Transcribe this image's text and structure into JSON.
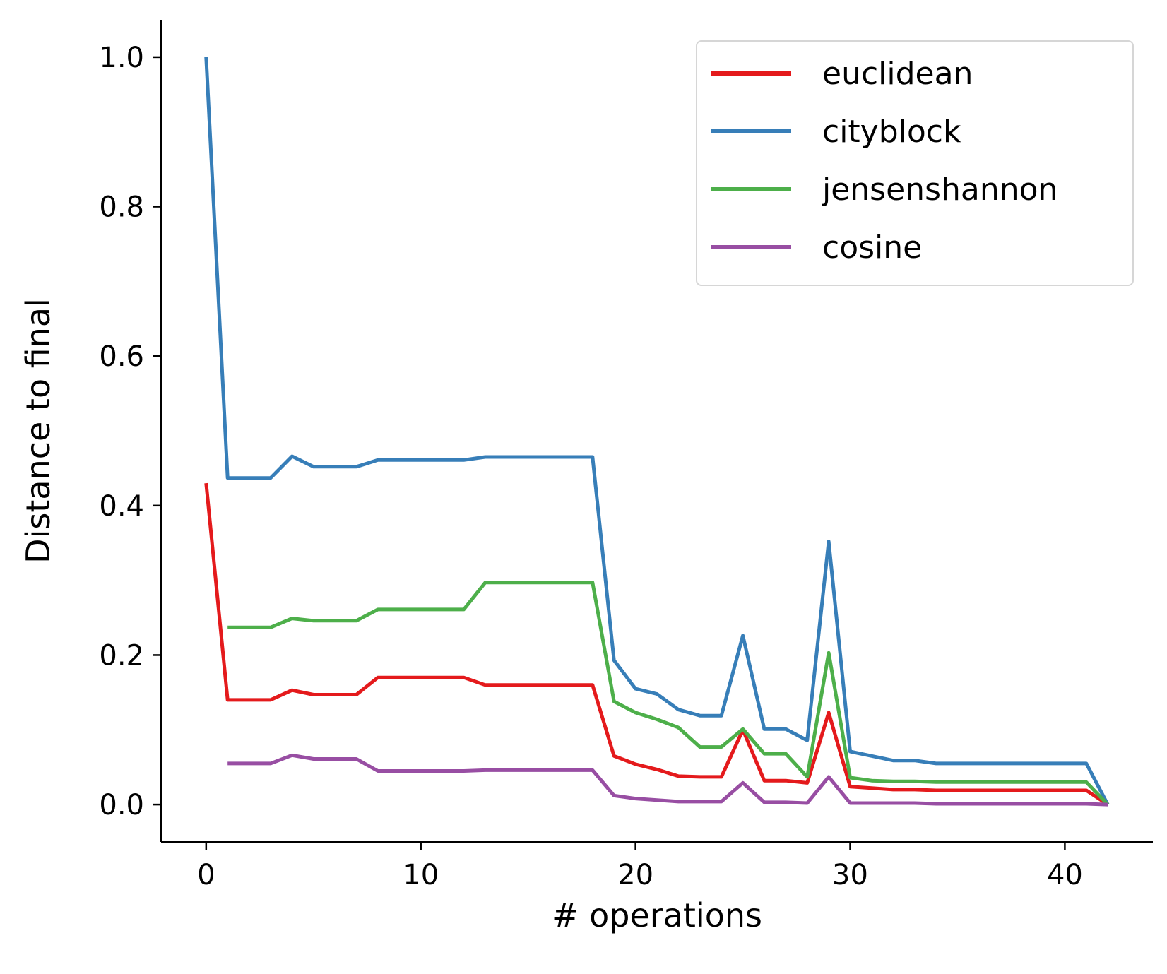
{
  "chart_data": {
    "type": "line",
    "title": "",
    "xlabel": "# operations",
    "ylabel": "Distance to final",
    "xlim": [
      -2.1,
      44.1
    ],
    "ylim": [
      -0.05,
      1.05
    ],
    "xticks": [
      0,
      10,
      20,
      30,
      40
    ],
    "xtick_labels": [
      "0",
      "10",
      "20",
      "30",
      "40"
    ],
    "yticks": [
      0.0,
      0.2,
      0.4,
      0.6,
      0.8,
      1.0
    ],
    "ytick_labels": [
      "0.0",
      "0.2",
      "0.4",
      "0.6",
      "0.8",
      "1.0"
    ],
    "grid": false,
    "legend_position": "top-right",
    "series": [
      {
        "name": "euclidean",
        "color": "#e41a1c",
        "x": [
          0,
          1,
          2,
          3,
          4,
          5,
          6,
          7,
          8,
          9,
          10,
          11,
          12,
          13,
          14,
          15,
          16,
          17,
          18,
          19,
          20,
          21,
          22,
          23,
          24,
          25,
          26,
          27,
          28,
          29,
          30,
          31,
          32,
          33,
          34,
          35,
          36,
          37,
          38,
          39,
          40,
          41,
          42
        ],
        "y": [
          0.43,
          0.14,
          0.14,
          0.14,
          0.153,
          0.147,
          0.147,
          0.147,
          0.17,
          0.17,
          0.17,
          0.17,
          0.17,
          0.16,
          0.16,
          0.16,
          0.16,
          0.16,
          0.16,
          0.065,
          0.054,
          0.047,
          0.038,
          0.037,
          0.037,
          0.1,
          0.032,
          0.032,
          0.029,
          0.123,
          0.024,
          0.022,
          0.02,
          0.02,
          0.019,
          0.019,
          0.019,
          0.019,
          0.019,
          0.019,
          0.019,
          0.019,
          0.0
        ]
      },
      {
        "name": "cityblock",
        "color": "#377eb8",
        "x": [
          0,
          1,
          2,
          3,
          4,
          5,
          6,
          7,
          8,
          9,
          10,
          11,
          12,
          13,
          14,
          15,
          16,
          17,
          18,
          19,
          20,
          21,
          22,
          23,
          24,
          25,
          26,
          27,
          28,
          29,
          30,
          31,
          32,
          33,
          34,
          35,
          36,
          37,
          38,
          39,
          40,
          41,
          42
        ],
        "y": [
          1.0,
          0.437,
          0.437,
          0.437,
          0.466,
          0.452,
          0.452,
          0.452,
          0.461,
          0.461,
          0.461,
          0.461,
          0.461,
          0.465,
          0.465,
          0.465,
          0.465,
          0.465,
          0.465,
          0.193,
          0.155,
          0.148,
          0.127,
          0.119,
          0.119,
          0.226,
          0.101,
          0.101,
          0.086,
          0.352,
          0.071,
          0.065,
          0.059,
          0.059,
          0.055,
          0.055,
          0.055,
          0.055,
          0.055,
          0.055,
          0.055,
          0.055,
          0.0
        ]
      },
      {
        "name": "jensenshannon",
        "color": "#4daf4a",
        "x": [
          1,
          2,
          3,
          4,
          5,
          6,
          7,
          8,
          9,
          10,
          11,
          12,
          13,
          14,
          15,
          16,
          17,
          18,
          19,
          20,
          21,
          22,
          23,
          24,
          25,
          26,
          27,
          28,
          29,
          30,
          31,
          32,
          33,
          34,
          35,
          36,
          37,
          38,
          39,
          40,
          41,
          42
        ],
        "y": [
          0.237,
          0.237,
          0.237,
          0.249,
          0.246,
          0.246,
          0.246,
          0.261,
          0.261,
          0.261,
          0.261,
          0.261,
          0.297,
          0.297,
          0.297,
          0.297,
          0.297,
          0.297,
          0.138,
          0.123,
          0.114,
          0.103,
          0.077,
          0.077,
          0.101,
          0.068,
          0.068,
          0.037,
          0.203,
          0.036,
          0.032,
          0.031,
          0.031,
          0.03,
          0.03,
          0.03,
          0.03,
          0.03,
          0.03,
          0.03,
          0.03,
          0.0
        ]
      },
      {
        "name": "cosine",
        "color": "#984ea3",
        "x": [
          1,
          2,
          3,
          4,
          5,
          6,
          7,
          8,
          9,
          10,
          11,
          12,
          13,
          14,
          15,
          16,
          17,
          18,
          19,
          20,
          21,
          22,
          23,
          24,
          25,
          26,
          27,
          28,
          29,
          30,
          31,
          32,
          33,
          34,
          35,
          36,
          37,
          38,
          39,
          40,
          41,
          42
        ],
        "y": [
          0.055,
          0.055,
          0.055,
          0.066,
          0.061,
          0.061,
          0.061,
          0.045,
          0.045,
          0.045,
          0.045,
          0.045,
          0.046,
          0.046,
          0.046,
          0.046,
          0.046,
          0.046,
          0.012,
          0.008,
          0.006,
          0.004,
          0.004,
          0.004,
          0.029,
          0.003,
          0.003,
          0.002,
          0.037,
          0.002,
          0.002,
          0.002,
          0.002,
          0.001,
          0.001,
          0.001,
          0.001,
          0.001,
          0.001,
          0.001,
          0.001,
          0.0
        ]
      }
    ]
  }
}
